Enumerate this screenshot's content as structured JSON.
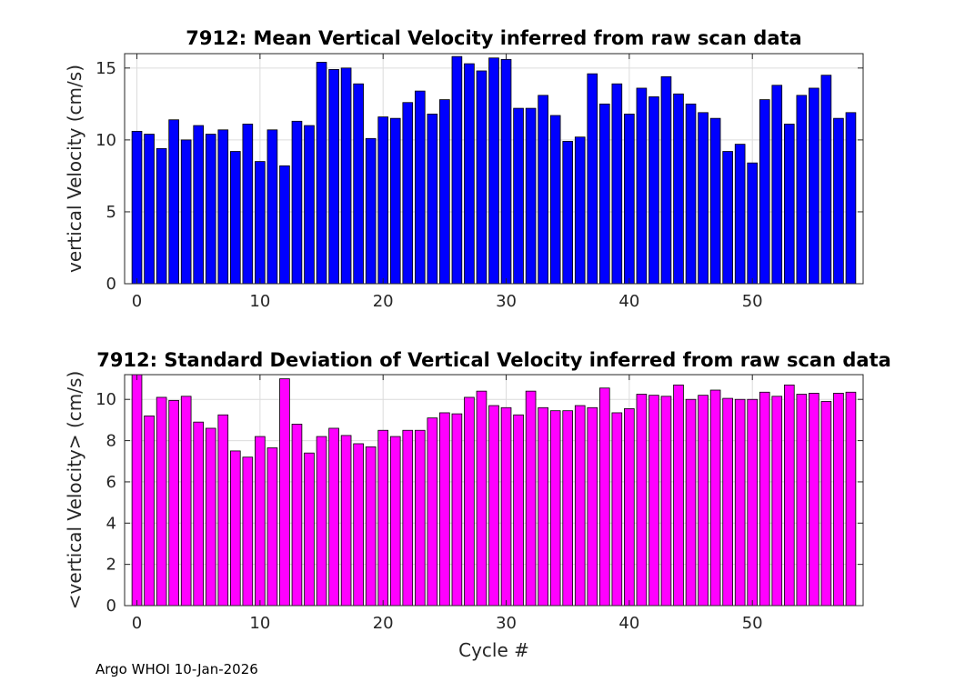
{
  "chart_data": [
    {
      "type": "bar",
      "title": "7912: Mean Vertical Velocity inferred from raw scan data",
      "xlabel": "",
      "ylabel": "vertical Velocity (cm/s)",
      "x": [
        0,
        1,
        2,
        3,
        4,
        5,
        6,
        7,
        8,
        9,
        10,
        11,
        12,
        13,
        14,
        15,
        16,
        17,
        18,
        19,
        20,
        21,
        22,
        23,
        24,
        25,
        26,
        27,
        28,
        29,
        30,
        31,
        32,
        33,
        34,
        35,
        36,
        37,
        38,
        39,
        40,
        41,
        42,
        43,
        44,
        45,
        46,
        47,
        48,
        49,
        50,
        51,
        52,
        53,
        54,
        55,
        56,
        57,
        58
      ],
      "values": [
        10.6,
        10.4,
        9.4,
        11.4,
        10.0,
        11.0,
        10.4,
        10.7,
        9.2,
        11.1,
        8.5,
        10.7,
        8.2,
        11.3,
        11.0,
        15.4,
        14.9,
        15.0,
        13.9,
        10.1,
        11.6,
        11.5,
        12.6,
        13.4,
        11.8,
        12.8,
        15.8,
        15.3,
        14.8,
        15.7,
        15.6,
        12.2,
        12.2,
        13.1,
        11.7,
        9.9,
        10.2,
        14.6,
        12.5,
        13.9,
        11.8,
        13.6,
        13.0,
        14.4,
        13.2,
        12.5,
        11.9,
        11.5,
        9.2,
        9.7,
        8.4,
        12.8,
        13.8,
        11.1,
        13.1,
        13.6,
        14.5,
        11.5,
        11.9
      ],
      "ylim": [
        0,
        16
      ],
      "xlim": [
        -1,
        59
      ],
      "xticks": [
        0,
        10,
        20,
        30,
        40,
        50
      ],
      "yticks": [
        0,
        5,
        10,
        15
      ],
      "grid": true,
      "bar_color": "#0000ff"
    },
    {
      "type": "bar",
      "title": "7912: Standard Deviation of Vertical Velocity inferred from raw scan data",
      "xlabel": "Cycle #",
      "ylabel": "<vertical Velocity> (cm/s)",
      "x": [
        0,
        1,
        2,
        3,
        4,
        5,
        6,
        7,
        8,
        9,
        10,
        11,
        12,
        13,
        14,
        15,
        16,
        17,
        18,
        19,
        20,
        21,
        22,
        23,
        24,
        25,
        26,
        27,
        28,
        29,
        30,
        31,
        32,
        33,
        34,
        35,
        36,
        37,
        38,
        39,
        40,
        41,
        42,
        43,
        44,
        45,
        46,
        47,
        48,
        49,
        50,
        51,
        52,
        53,
        54,
        55,
        56,
        57,
        58
      ],
      "values": [
        11.3,
        9.2,
        10.1,
        9.95,
        10.15,
        8.9,
        8.6,
        9.25,
        7.5,
        7.2,
        8.2,
        7.65,
        11.0,
        8.8,
        7.4,
        8.2,
        8.6,
        8.25,
        7.85,
        7.7,
        8.5,
        8.2,
        8.5,
        8.5,
        9.1,
        9.35,
        9.3,
        10.1,
        10.4,
        9.7,
        9.6,
        9.25,
        10.4,
        9.6,
        9.45,
        9.45,
        9.7,
        9.6,
        10.55,
        9.35,
        9.55,
        10.25,
        10.2,
        10.15,
        10.7,
        10.0,
        10.2,
        10.45,
        10.05,
        10.0,
        10.0,
        10.35,
        10.15,
        10.7,
        10.25,
        10.3,
        9.9,
        10.3,
        10.35
      ],
      "ylim": [
        0,
        11.2
      ],
      "xlim": [
        -1,
        59
      ],
      "xticks": [
        0,
        10,
        20,
        30,
        40,
        50
      ],
      "yticks": [
        0,
        2,
        4,
        6,
        8,
        10
      ],
      "grid": true,
      "bar_color": "#ff00ff"
    }
  ],
  "footer": "Argo WHOI 10-Jan-2026"
}
